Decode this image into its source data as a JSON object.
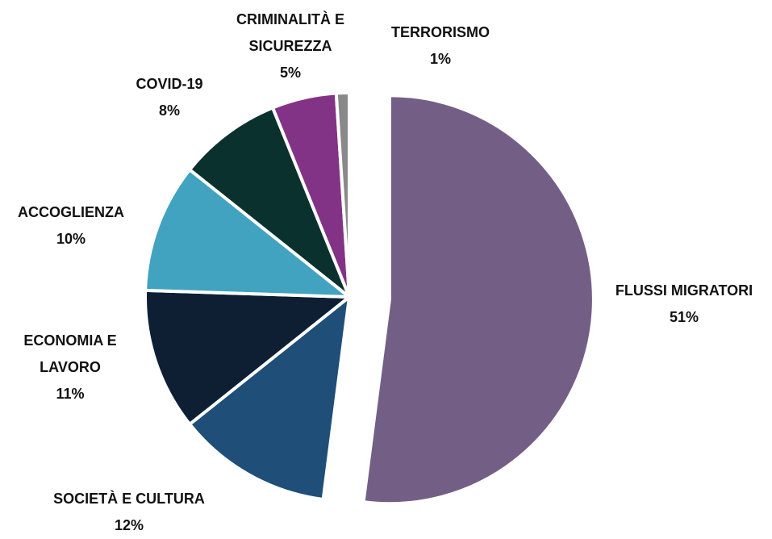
{
  "chart_data": {
    "type": "pie",
    "categories": [
      "FLUSSI MIGRATORI",
      "SOCIETÀ E CULTURA",
      "ECONOMIA E LAVORO",
      "ACCOGLIENZA",
      "COVID-19",
      "CRIMINALITÀ E SICUREZZA",
      "TERRORISMO"
    ],
    "values": [
      51,
      12,
      11,
      10,
      8,
      5,
      1
    ],
    "value_labels": [
      "51%",
      "12%",
      "11%",
      "10%",
      "8%",
      "5%",
      "1%"
    ],
    "colors": [
      "#735f86",
      "#1f4e79",
      "#0f1f33",
      "#41a3bf",
      "#0b312f",
      "#833385",
      "#898989"
    ]
  }
}
